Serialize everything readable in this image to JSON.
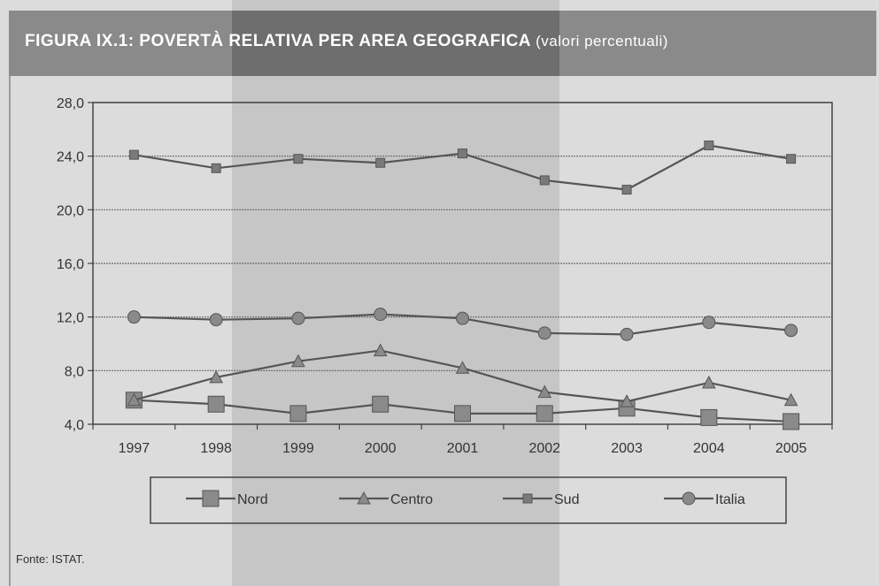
{
  "header": {
    "title": "FIGURA IX.1: POVERTÀ RELATIVA PER AREA GEOGRAFICA",
    "subtitle": "(valori percentuali)"
  },
  "footer": {
    "source": "Fonte: ISTAT."
  },
  "colors": {
    "line": "#555555",
    "axis": "#444444",
    "grid": "#6a6a6a",
    "header_bg": "#8a8a8a"
  },
  "chart_data": {
    "type": "line",
    "title": "FIGURA IX.1: POVERTÀ RELATIVA PER AREA GEOGRAFICA (valori percentuali)",
    "xlabel": "",
    "ylabel": "",
    "categories": [
      "1997",
      "1998",
      "1999",
      "2000",
      "2001",
      "2002",
      "2003",
      "2004",
      "2005"
    ],
    "ylim": [
      4.0,
      28.0
    ],
    "yticks": [
      "4,0",
      "8,0",
      "12,0",
      "16,0",
      "20,0",
      "24,0",
      "28,0"
    ],
    "ytick_values": [
      4,
      8,
      12,
      16,
      20,
      24,
      28
    ],
    "grid": true,
    "legend_position": "bottom",
    "series": [
      {
        "name": "Nord",
        "marker": "square",
        "values": [
          5.8,
          5.5,
          4.8,
          5.5,
          4.8,
          4.8,
          5.2,
          4.5,
          4.2
        ]
      },
      {
        "name": "Centro",
        "marker": "triangle",
        "values": [
          5.8,
          7.5,
          8.7,
          9.5,
          8.2,
          6.4,
          5.7,
          7.1,
          5.8
        ]
      },
      {
        "name": "Sud",
        "marker": "small-square",
        "values": [
          24.1,
          23.1,
          23.8,
          23.5,
          24.2,
          22.2,
          21.5,
          24.8,
          23.8
        ]
      },
      {
        "name": "Italia",
        "marker": "circle",
        "values": [
          12.0,
          11.8,
          11.9,
          12.2,
          11.9,
          10.8,
          10.7,
          11.6,
          11.0
        ]
      }
    ]
  }
}
